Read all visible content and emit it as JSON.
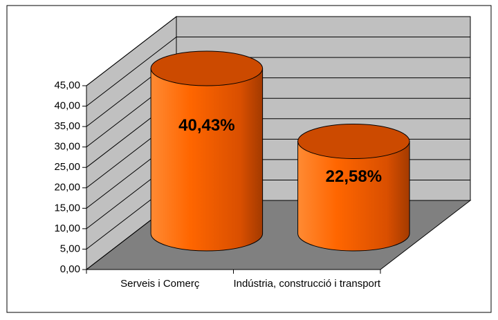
{
  "chart_data": {
    "type": "bar",
    "shape": "cylinder",
    "categories": [
      "Serveis i Comerç",
      "Indústria, construcció i transport"
    ],
    "values": [
      40.43,
      22.58
    ],
    "value_labels": [
      "40,43%",
      "22,58%"
    ],
    "color": "#ff6600",
    "ylim": [
      0,
      45
    ],
    "yticks": [
      {
        "value": 0,
        "label": "0,00"
      },
      {
        "value": 5,
        "label": "5,00"
      },
      {
        "value": 10,
        "label": "10,00"
      },
      {
        "value": 15,
        "label": "15,00"
      },
      {
        "value": 20,
        "label": "20,00"
      },
      {
        "value": 25,
        "label": "25,00"
      },
      {
        "value": 30,
        "label": "30,00"
      },
      {
        "value": 35,
        "label": "35,00"
      },
      {
        "value": 40,
        "label": "40,00"
      },
      {
        "value": 45,
        "label": "45,00"
      }
    ],
    "grid": true
  }
}
